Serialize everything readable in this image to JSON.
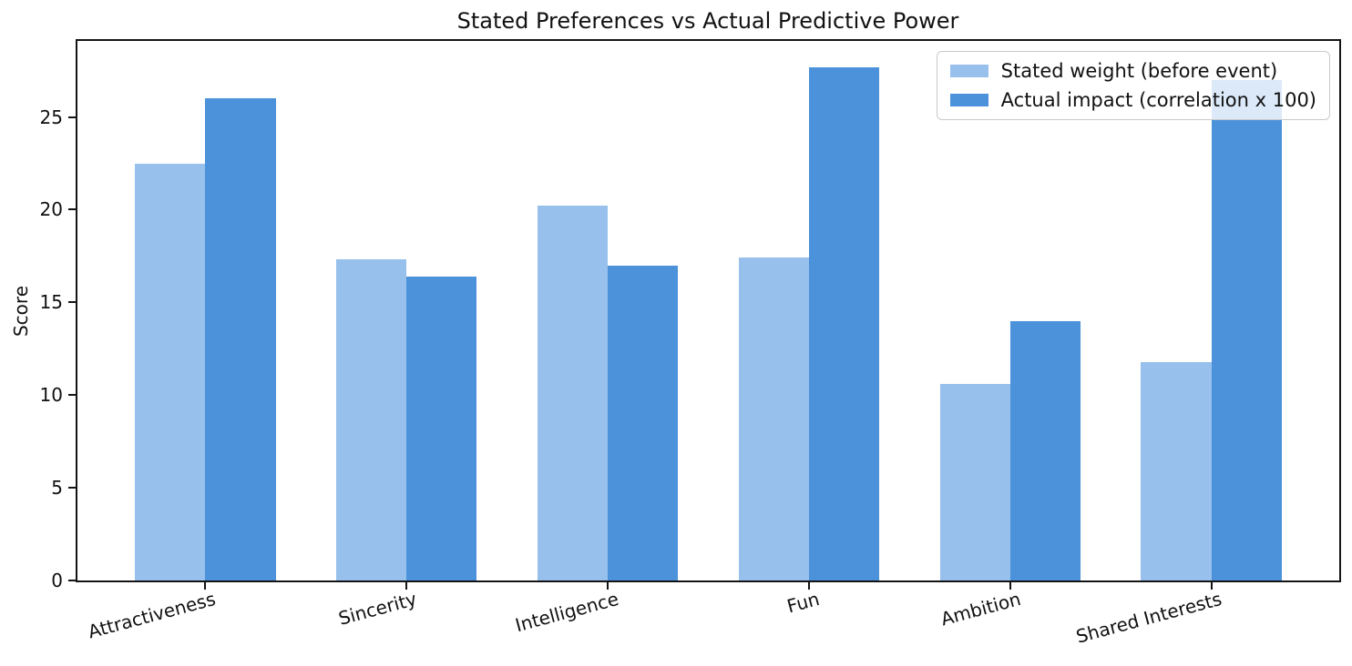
{
  "chart_data": {
    "type": "bar",
    "title": "Stated Preferences vs Actual Predictive Power",
    "xlabel": "",
    "ylabel": "Score",
    "categories": [
      "Attractiveness",
      "Sincerity",
      "Intelligence",
      "Fun",
      "Ambition",
      "Shared Interests"
    ],
    "series": [
      {
        "name": "Stated weight (before event)",
        "color": "#98c0ec",
        "values": [
          22.5,
          17.3,
          20.2,
          17.4,
          10.6,
          11.8
        ]
      },
      {
        "name": "Actual impact (correlation x 100)",
        "color": "#4b92da",
        "values": [
          26.0,
          16.4,
          17.0,
          27.7,
          14.0,
          27.0
        ]
      }
    ],
    "yticks": [
      0,
      5,
      10,
      15,
      20,
      25
    ],
    "ylim": [
      0,
      29.1
    ],
    "xtick_rotation_deg": 15,
    "grid": false,
    "legend_position": "upper right",
    "axis_color": "#141414"
  }
}
